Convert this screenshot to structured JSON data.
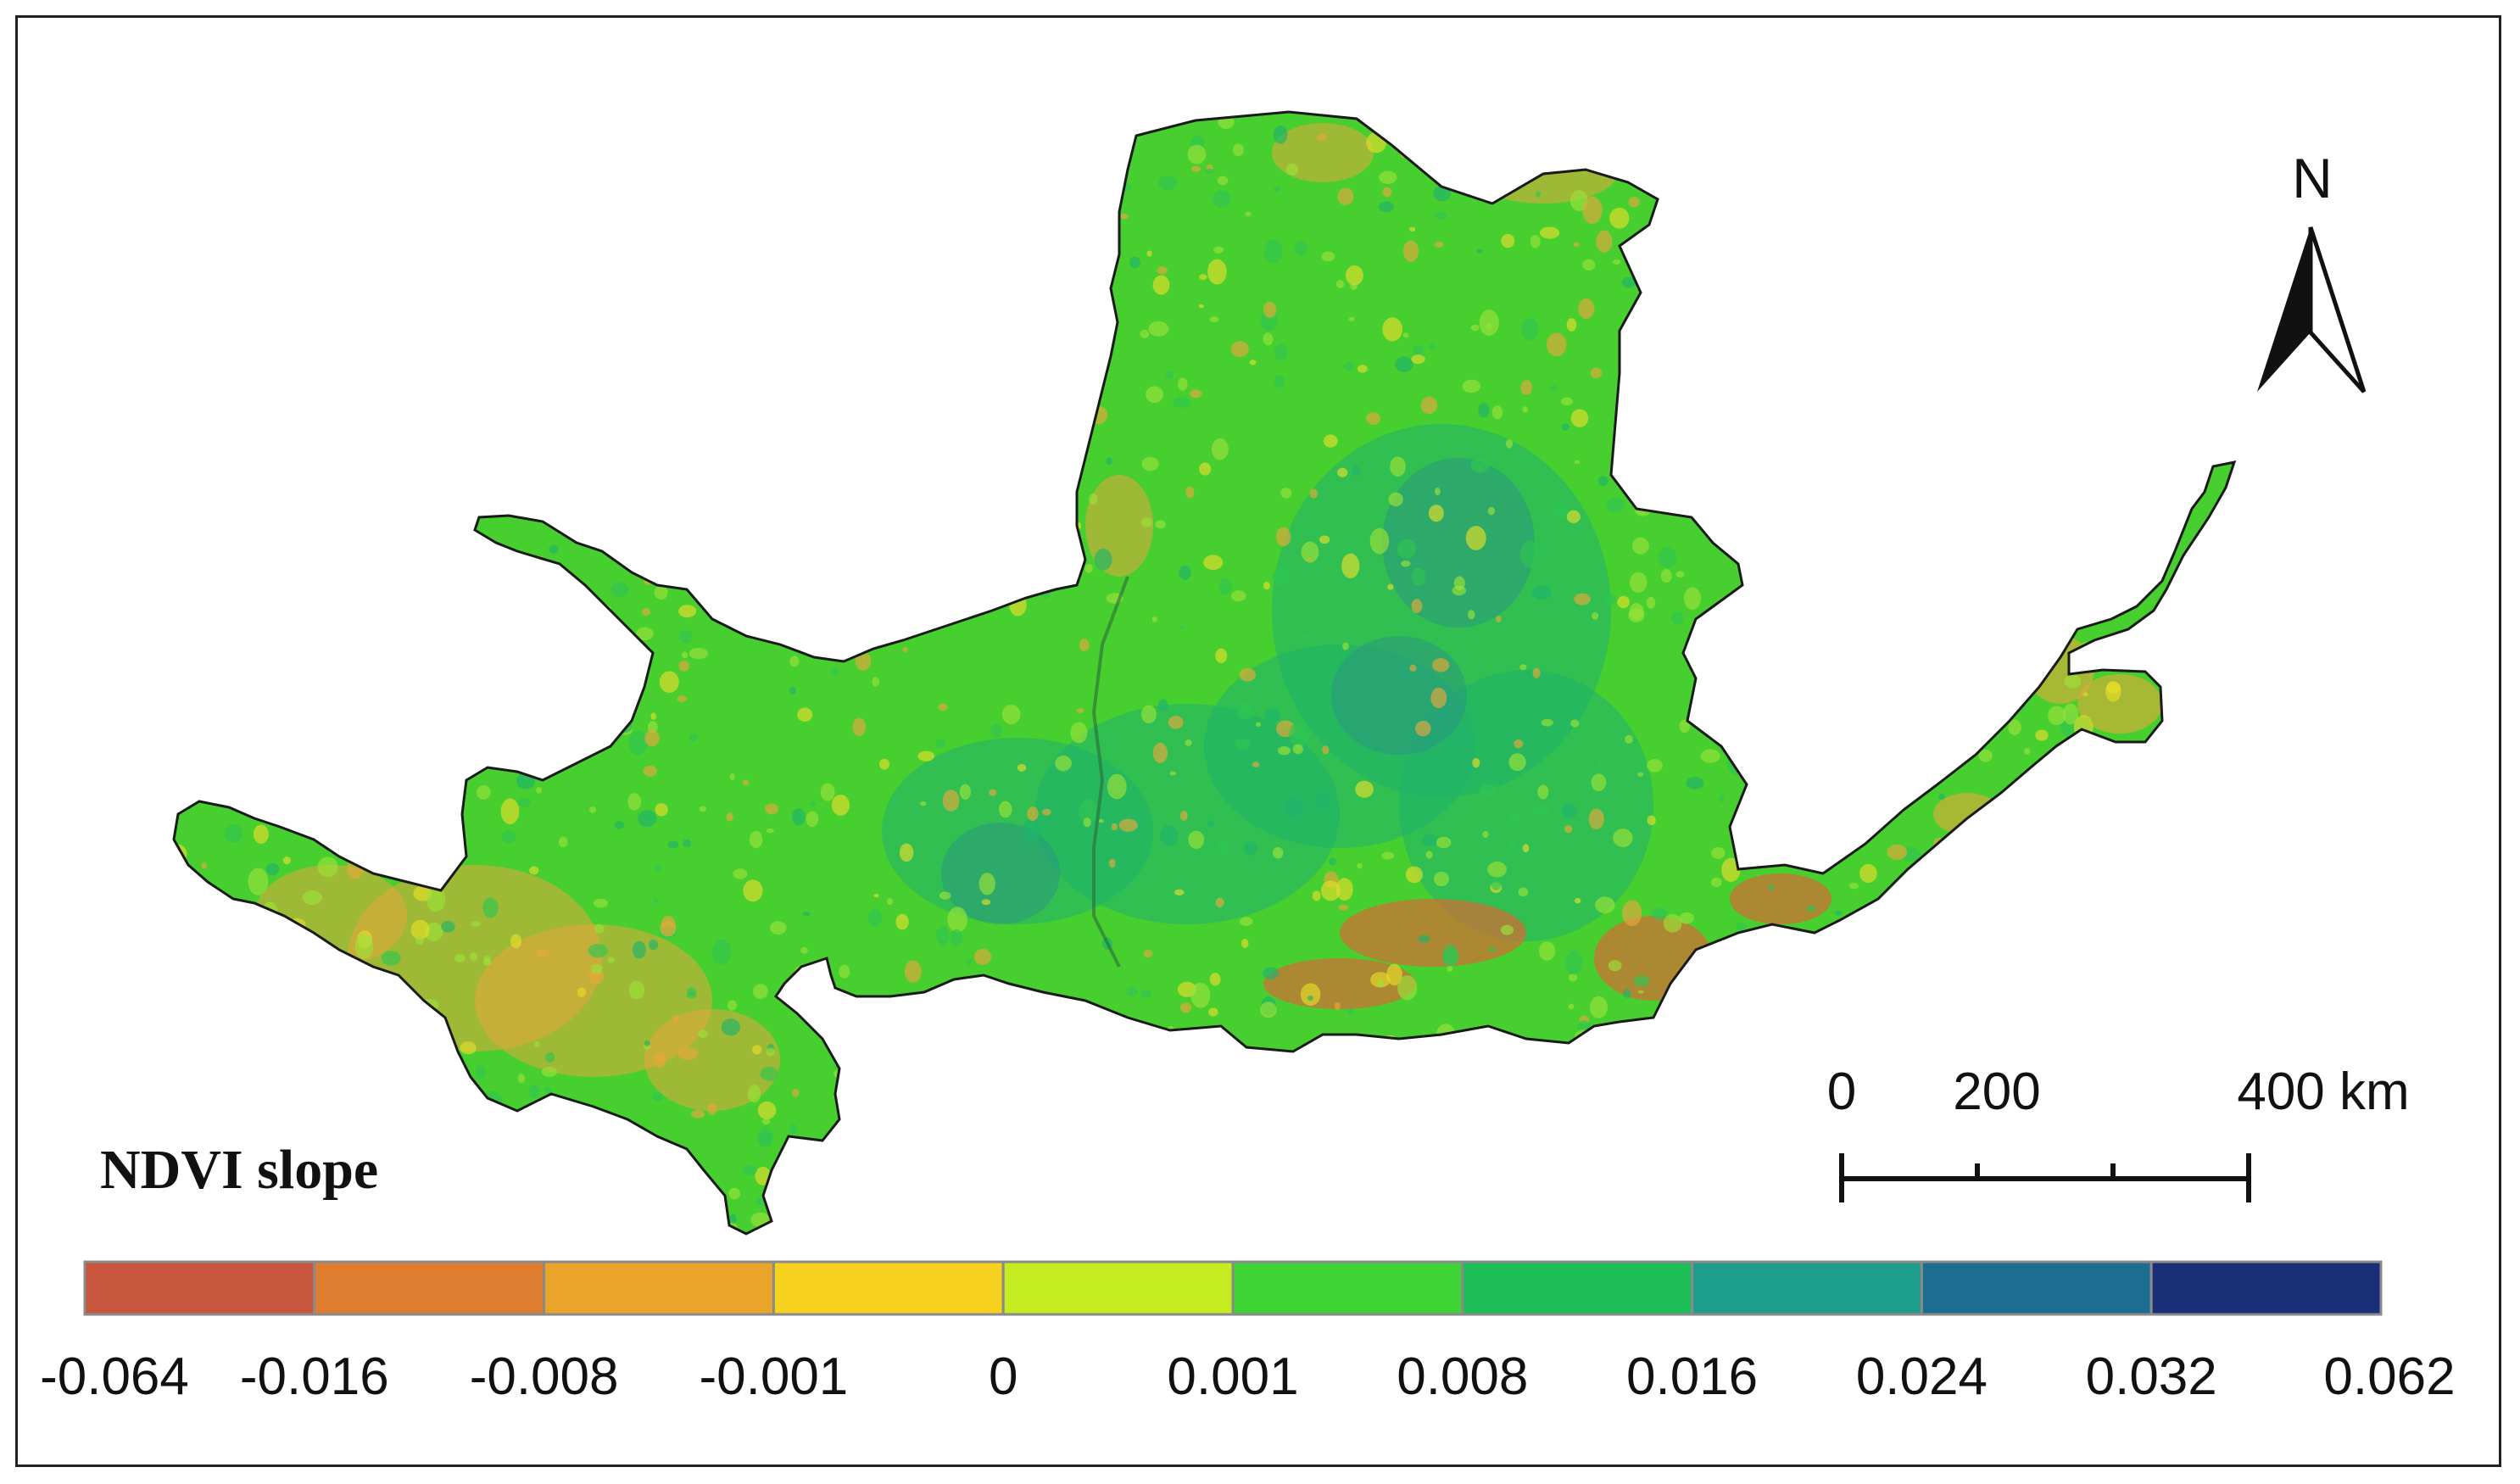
{
  "legend": {
    "title": "NDVI slope",
    "ticks": [
      "-0.064",
      "-0.016",
      "-0.008",
      "-0.001",
      "0",
      "0.001",
      "0.008",
      "0.016",
      "0.024",
      "0.032",
      "0.062"
    ],
    "bins": [
      {
        "color": "#c8553d"
      },
      {
        "color": "#de7c2f"
      },
      {
        "color": "#eba42a"
      },
      {
        "color": "#f6d11d"
      },
      {
        "color": "#c4ec21"
      },
      {
        "color": "#3ed435"
      },
      {
        "color": "#1dbe58"
      },
      {
        "color": "#1e9f8d"
      },
      {
        "color": "#1c6d91"
      },
      {
        "color": "#1a2f78"
      }
    ]
  },
  "scale_bar": {
    "labels": [
      "0",
      "200",
      "400 km"
    ]
  },
  "north_arrow": {
    "label": "N",
    "icon": "north-arrow-icon"
  },
  "map": {
    "colors": {
      "base": "#46cf2f",
      "outline": "#1a1a1a",
      "negative": "#e8a83a",
      "strong_negative": "#d86a35",
      "positive": "#1fb36b",
      "strong_positive": "#2a8d8e"
    }
  }
}
